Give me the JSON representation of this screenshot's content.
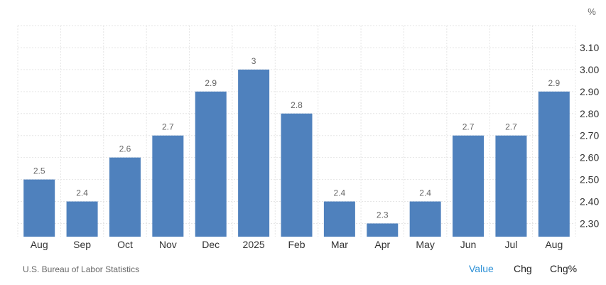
{
  "chart_data": {
    "type": "bar",
    "categories": [
      "Aug",
      "Sep",
      "Oct",
      "Nov",
      "Dec",
      "2025",
      "Feb",
      "Mar",
      "Apr",
      "May",
      "Jun",
      "Jul",
      "Aug"
    ],
    "values": [
      2.5,
      2.4,
      2.6,
      2.7,
      2.9,
      3.0,
      2.8,
      2.4,
      2.3,
      2.4,
      2.7,
      2.7,
      2.9
    ],
    "value_labels": [
      "2.5",
      "2.4",
      "2.6",
      "2.7",
      "2.9",
      "3",
      "2.8",
      "2.4",
      "2.3",
      "2.4",
      "2.7",
      "2.7",
      "2.9"
    ],
    "y_ticks": [
      "2.30",
      "2.40",
      "2.50",
      "2.60",
      "2.70",
      "2.80",
      "2.90",
      "3.00",
      "3.10"
    ],
    "y_tick_values": [
      2.3,
      2.4,
      2.5,
      2.6,
      2.7,
      2.8,
      2.9,
      3.0,
      3.1
    ],
    "unit": "%",
    "ylim": [
      2.24,
      3.2
    ],
    "grid": true,
    "y_axis_position": "right",
    "bar_color": "#4f81bd"
  },
  "footer": {
    "source": "U.S. Bureau of Labor Statistics",
    "toggles": {
      "value": "Value",
      "chg": "Chg",
      "chg_pct": "Chg%"
    }
  },
  "colors": {
    "active_toggle": "#2a8fd6",
    "grid": "#e6e6e6"
  }
}
